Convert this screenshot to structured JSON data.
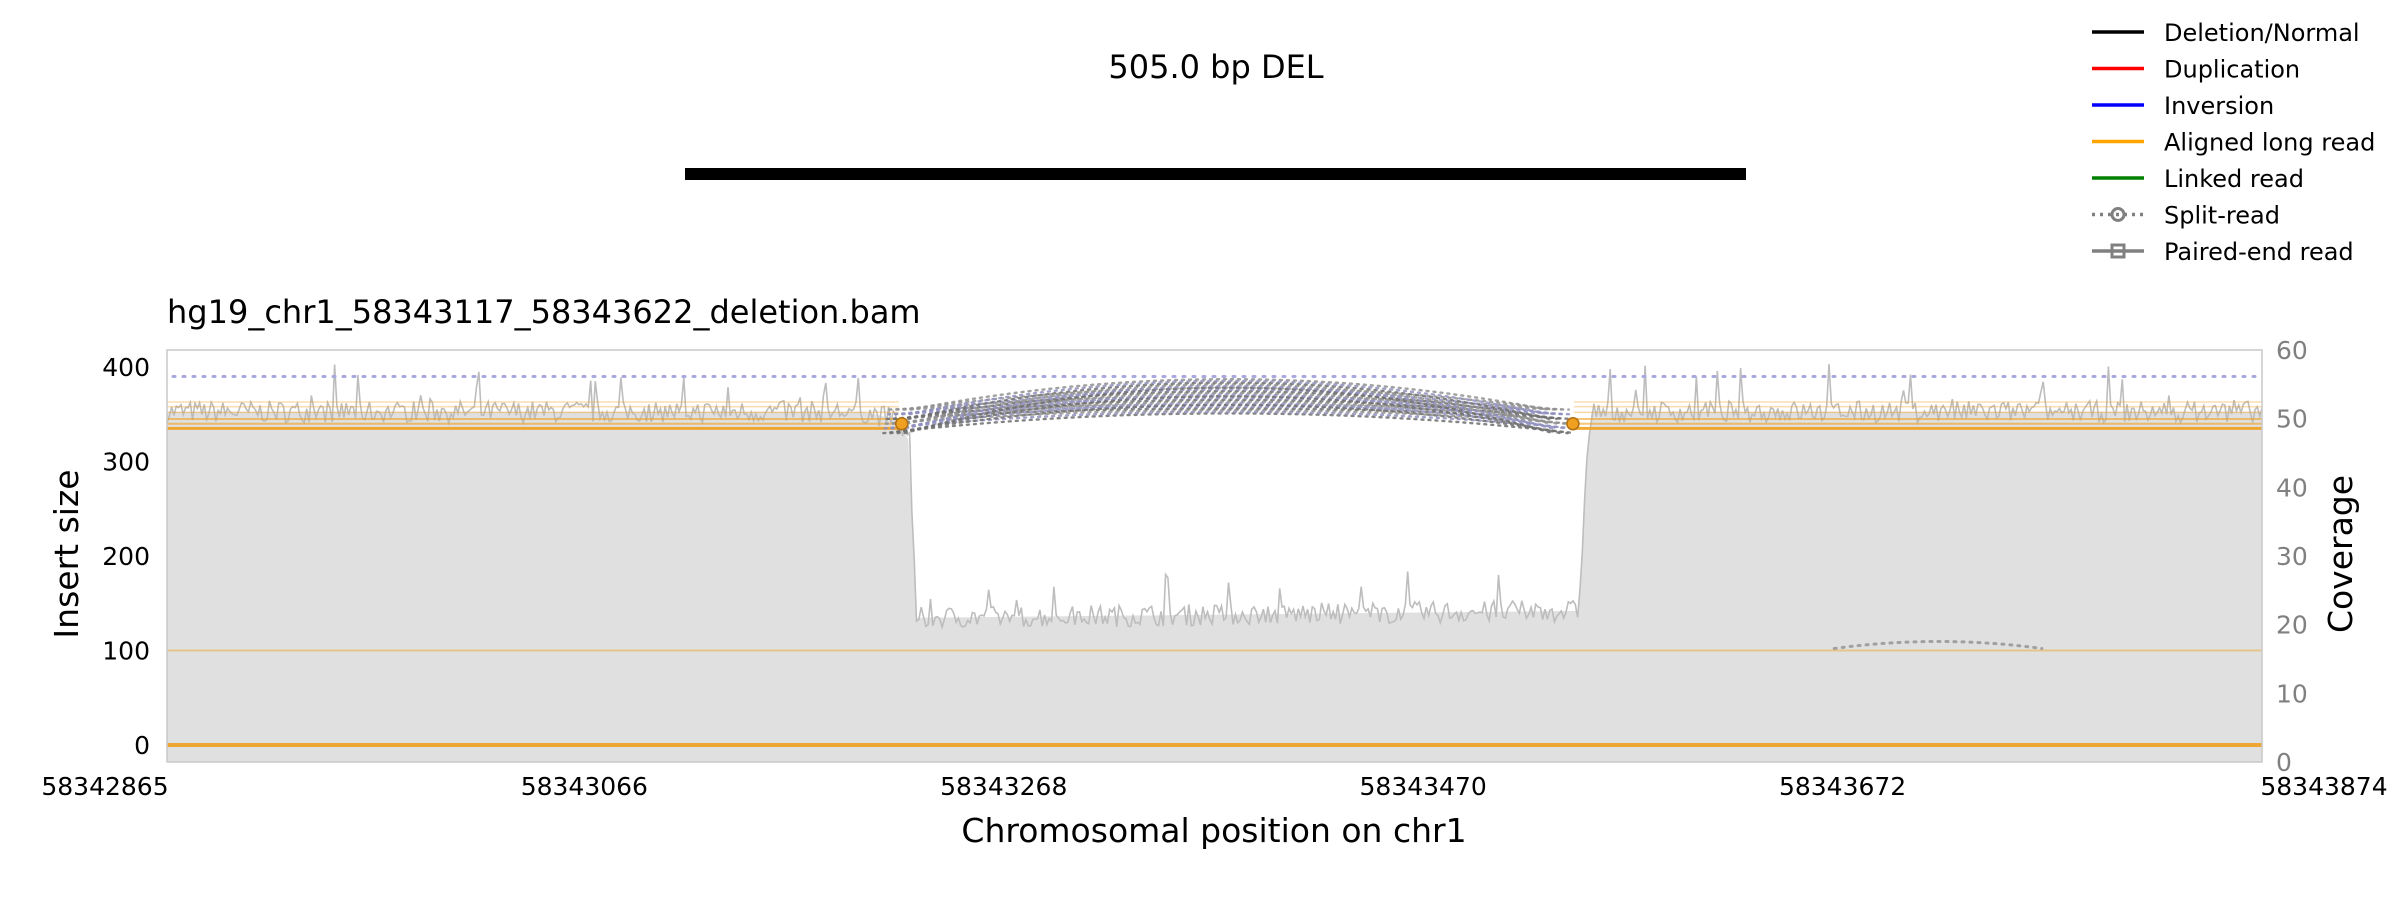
{
  "chart_data": {
    "type": "line",
    "title": "505.0 bp DEL",
    "subtitle": "hg19_chr1_58343117_58343622_deletion.bam",
    "xlabel": "Chromosomal position on chr1",
    "ylabel": "Insert size",
    "y2label": "Coverage",
    "xlim": [
      58342865,
      58343874
    ],
    "ylim": [
      -18,
      418
    ],
    "y2lim": [
      0,
      60
    ],
    "x_ticks": [
      "58342865",
      "58343066",
      "58343268",
      "58343470",
      "58343672",
      "58343874"
    ],
    "y_ticks": [
      "0",
      "100",
      "200",
      "300",
      "400"
    ],
    "y2_ticks": [
      "0",
      "10",
      "20",
      "30",
      "40",
      "50",
      "60"
    ],
    "sv_bar": {
      "start": 58343117,
      "end": 58343622,
      "type": "Deletion/Normal"
    },
    "coverage_profile": [
      {
        "x": 58342865,
        "y": 51
      },
      {
        "x": 58343200,
        "y": 51
      },
      {
        "x": 58343215,
        "y": 50
      },
      {
        "x": 58343222,
        "y": 47
      },
      {
        "x": 58343226,
        "y": 21
      },
      {
        "x": 58343545,
        "y": 22
      },
      {
        "x": 58343548,
        "y": 40
      },
      {
        "x": 58343551,
        "y": 51
      },
      {
        "x": 58343874,
        "y": 51
      }
    ],
    "split_read_arcs": [
      {
        "start": 58343210,
        "end": 58343543,
        "count": 24
      },
      {
        "start": 58343668,
        "end": 58343768,
        "count": 1
      }
    ],
    "legend_position": "top-right",
    "legend": [
      {
        "label": "Deletion/Normal",
        "color": "#000000",
        "style": "solid"
      },
      {
        "label": "Duplication",
        "color": "#ff0000",
        "style": "solid"
      },
      {
        "label": "Inversion",
        "color": "#0000ff",
        "style": "solid"
      },
      {
        "label": "Aligned long read",
        "color": "#ffa500",
        "style": "solid"
      },
      {
        "label": "Linked read",
        "color": "#008000",
        "style": "solid"
      },
      {
        "label": "Split-read",
        "color": "#808080",
        "style": "dotted-circle"
      },
      {
        "label": "Paired-end read",
        "color": "#808080",
        "style": "solid-square"
      }
    ]
  }
}
